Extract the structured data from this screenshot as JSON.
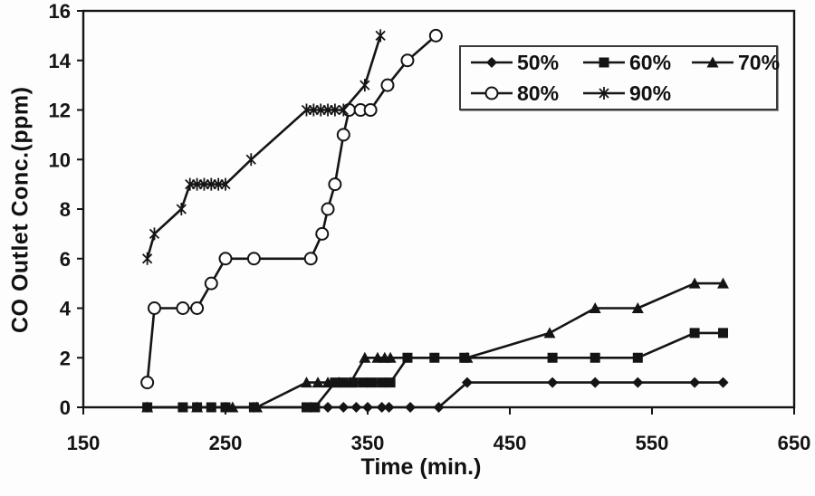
{
  "chart_data": {
    "type": "line",
    "title": "",
    "xlabel": "Time (min.)",
    "ylabel": "CO Outlet Conc.(ppm)",
    "xlim": [
      150,
      650
    ],
    "ylim": [
      0,
      16
    ],
    "xticks": [
      150,
      250,
      350,
      450,
      550,
      650
    ],
    "yticks": [
      0,
      2,
      4,
      6,
      8,
      10,
      12,
      14,
      16
    ],
    "grid": false,
    "legend_position": "inside-top-right",
    "line_color": "#141414",
    "background": "#fdfdfd",
    "series": [
      {
        "name": "50%",
        "marker": "diamond",
        "points": [
          [
            195,
            0
          ],
          [
            250,
            0
          ],
          [
            270,
            0
          ],
          [
            310,
            0
          ],
          [
            322,
            0
          ],
          [
            333,
            0
          ],
          [
            342,
            0
          ],
          [
            350,
            0
          ],
          [
            360,
            0
          ],
          [
            365,
            0
          ],
          [
            380,
            0
          ],
          [
            400,
            0
          ],
          [
            420,
            1
          ],
          [
            480,
            1
          ],
          [
            510,
            1
          ],
          [
            540,
            1
          ],
          [
            580,
            1
          ],
          [
            600,
            1
          ]
        ]
      },
      {
        "name": "60%",
        "marker": "square",
        "points": [
          [
            195,
            0
          ],
          [
            220,
            0
          ],
          [
            230,
            0
          ],
          [
            240,
            0
          ],
          [
            250,
            0
          ],
          [
            270,
            0
          ],
          [
            307,
            0
          ],
          [
            313,
            0
          ],
          [
            327,
            1
          ],
          [
            333,
            1
          ],
          [
            340,
            1
          ],
          [
            347,
            1
          ],
          [
            353,
            1
          ],
          [
            360,
            1
          ],
          [
            366,
            1
          ],
          [
            378,
            2
          ],
          [
            397,
            2
          ],
          [
            418,
            2
          ],
          [
            480,
            2
          ],
          [
            510,
            2
          ],
          [
            540,
            2
          ],
          [
            580,
            3
          ],
          [
            600,
            3
          ]
        ]
      },
      {
        "name": "70%",
        "marker": "triangle",
        "points": [
          [
            195,
            0
          ],
          [
            230,
            0
          ],
          [
            255,
            0
          ],
          [
            272,
            0
          ],
          [
            307,
            1
          ],
          [
            315,
            1
          ],
          [
            322,
            1
          ],
          [
            330,
            1
          ],
          [
            338,
            1
          ],
          [
            348,
            2
          ],
          [
            357,
            2
          ],
          [
            362,
            2
          ],
          [
            366,
            2
          ],
          [
            420,
            2
          ],
          [
            478,
            3
          ],
          [
            510,
            4
          ],
          [
            540,
            4
          ],
          [
            580,
            5
          ],
          [
            600,
            5
          ]
        ]
      },
      {
        "name": "80%",
        "marker": "circle-open",
        "points": [
          [
            195,
            1
          ],
          [
            200,
            4
          ],
          [
            220,
            4
          ],
          [
            230,
            4
          ],
          [
            240,
            5
          ],
          [
            250,
            6
          ],
          [
            270,
            6
          ],
          [
            310,
            6
          ],
          [
            318,
            7
          ],
          [
            322,
            8
          ],
          [
            327,
            9
          ],
          [
            333,
            11
          ],
          [
            337,
            12
          ],
          [
            345,
            12
          ],
          [
            352,
            12
          ],
          [
            364,
            13
          ],
          [
            378,
            14
          ],
          [
            398,
            15
          ]
        ]
      },
      {
        "name": "90%",
        "marker": "asterisk",
        "points": [
          [
            195,
            6
          ],
          [
            200,
            7
          ],
          [
            219,
            8
          ],
          [
            225,
            9
          ],
          [
            230,
            9
          ],
          [
            235,
            9
          ],
          [
            240,
            9
          ],
          [
            245,
            9
          ],
          [
            250,
            9
          ],
          [
            268,
            10
          ],
          [
            307,
            12
          ],
          [
            312,
            12
          ],
          [
            317,
            12
          ],
          [
            322,
            12
          ],
          [
            327,
            12
          ],
          [
            333,
            12
          ],
          [
            348,
            13
          ],
          [
            359,
            15
          ]
        ]
      }
    ]
  }
}
